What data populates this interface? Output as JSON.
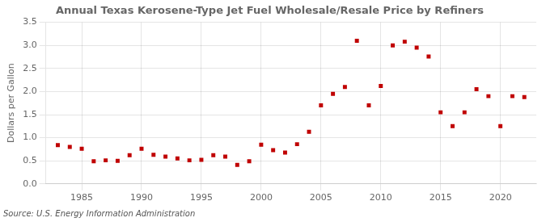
{
  "chart_data": {
    "type": "scatter",
    "title": "Annual Texas Kerosene-Type Jet Fuel Wholesale/Resale Price by Refiners",
    "ylabel": "Dollars per Gallon",
    "annotation": "Source: U.S. Energy Information Administration",
    "x": [
      1983,
      1984,
      1985,
      1986,
      1987,
      1988,
      1989,
      1990,
      1991,
      1992,
      1993,
      1994,
      1995,
      1996,
      1997,
      1998,
      1999,
      2000,
      2001,
      2002,
      2003,
      2004,
      2005,
      2006,
      2007,
      2008,
      2009,
      2010,
      2011,
      2012,
      2013,
      2014,
      2015,
      2016,
      2017,
      2018,
      2019,
      2020,
      2021,
      2022
    ],
    "values": [
      0.84,
      0.8,
      0.76,
      0.49,
      0.51,
      0.5,
      0.62,
      0.76,
      0.63,
      0.59,
      0.55,
      0.51,
      0.52,
      0.62,
      0.59,
      0.41,
      0.49,
      0.85,
      0.73,
      0.68,
      0.86,
      1.13,
      1.7,
      1.95,
      2.1,
      3.1,
      1.7,
      2.12,
      3.0,
      3.08,
      2.95,
      2.76,
      1.55,
      1.25,
      1.55,
      2.05,
      1.9,
      1.25,
      1.9,
      1.88
    ],
    "color": "#c00000",
    "marker": "square",
    "xlim": [
      1982,
      2023
    ],
    "xticks": [
      1985,
      1990,
      1995,
      2000,
      2005,
      2010,
      2015,
      2020
    ],
    "ylim": [
      0.0,
      3.5
    ],
    "yticks": [
      {
        "value": 0,
        "label": "0.0"
      },
      0.5,
      {
        "value": 1,
        "label": "1.0"
      },
      1.5,
      {
        "value": 2,
        "label": "2.0"
      },
      2.5,
      {
        "value": 3,
        "label": "3.0"
      },
      3.5
    ],
    "grid": true
  }
}
